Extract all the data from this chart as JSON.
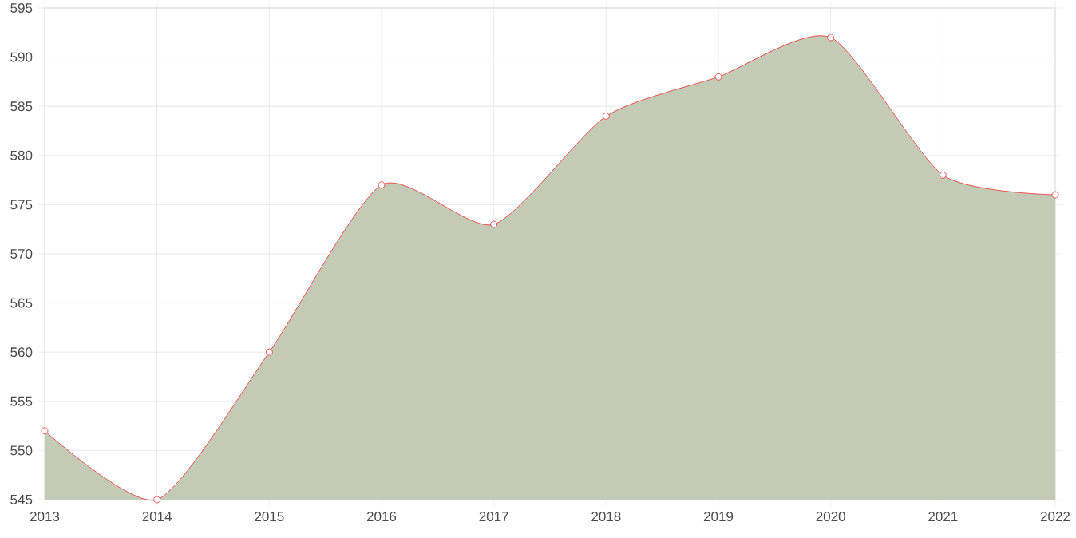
{
  "chart_data": {
    "type": "area",
    "x": [
      2013,
      2014,
      2015,
      2016,
      2017,
      2018,
      2019,
      2020,
      2021,
      2022
    ],
    "series": [
      {
        "color": "#ee2b2b",
        "values": [
          552,
          545,
          560,
          577,
          573,
          584,
          588,
          592,
          578,
          576
        ]
      }
    ],
    "xlim": [
      2013,
      2022
    ],
    "xticks": [
      2013,
      2014,
      2015,
      2016,
      2017,
      2018,
      2019,
      2020,
      2021,
      2022
    ],
    "ylim": [
      545,
      595
    ],
    "yticks": [
      545,
      550,
      555,
      560,
      565,
      570,
      575,
      580,
      585,
      590,
      595
    ],
    "grid": true,
    "marker": "circle",
    "line_style": "solid"
  }
}
